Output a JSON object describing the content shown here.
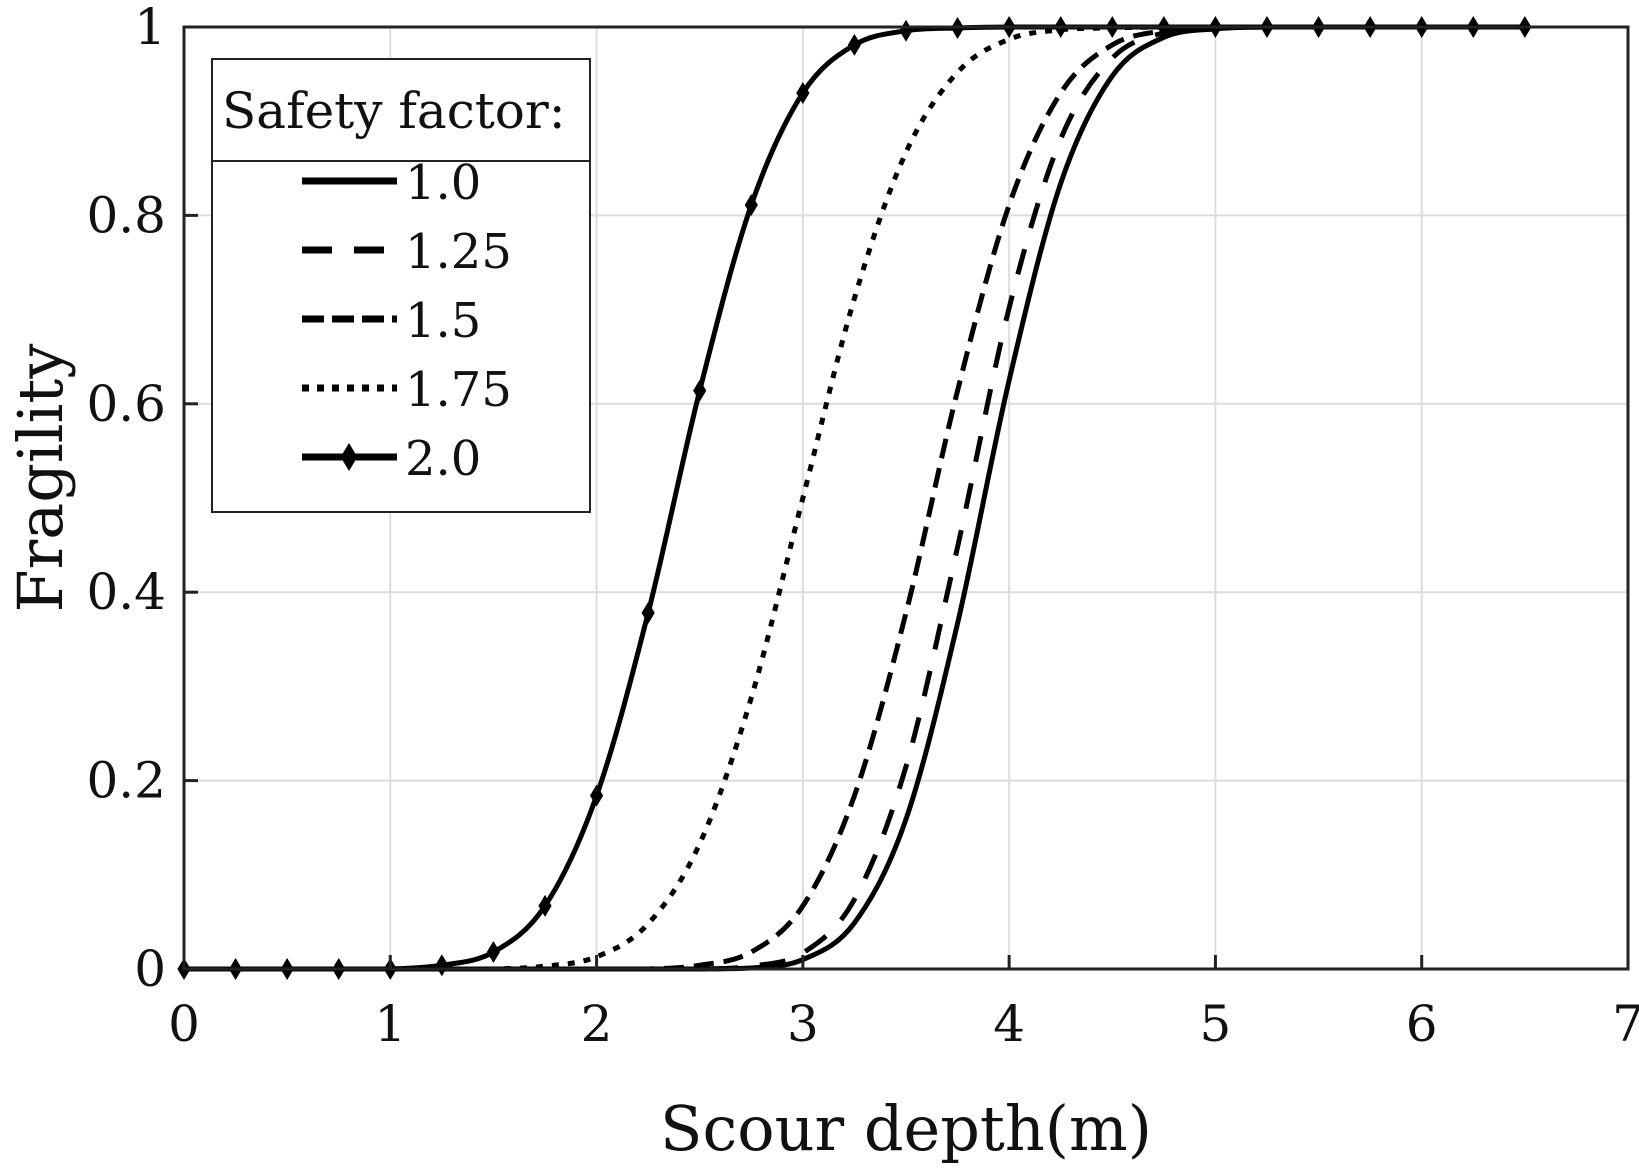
{
  "chart_data": {
    "type": "line",
    "title": "",
    "xlabel": "Scour depth(m)",
    "ylabel": "Fragility",
    "xlim": [
      0,
      7
    ],
    "ylim": [
      0,
      1
    ],
    "xticks": [
      "0",
      "1",
      "2",
      "3",
      "4",
      "5",
      "6",
      "7"
    ],
    "yticks": [
      "0",
      "0.2",
      "0.4",
      "0.6",
      "0.8",
      "1"
    ],
    "grid": true,
    "legend": {
      "title": "Safety factor:",
      "placement": "top-left"
    },
    "x": [
      0,
      0.25,
      0.5,
      0.75,
      1,
      1.25,
      1.5,
      1.75,
      2,
      2.25,
      2.5,
      2.75,
      3,
      3.25,
      3.5,
      3.75,
      4,
      4.25,
      4.5,
      4.75,
      5,
      5.25,
      5.5,
      5.75,
      6,
      6.25,
      6.5
    ],
    "series": [
      {
        "name": "1.0",
        "style": "solid",
        "color": "#000000",
        "values": [
          0,
          0,
          0,
          0,
          0,
          0,
          0,
          0,
          0,
          0,
          0,
          0.001,
          0.01,
          0.049,
          0.159,
          0.367,
          0.625,
          0.834,
          0.948,
          0.989,
          0.998,
          1,
          1,
          1,
          1,
          1,
          1
        ]
      },
      {
        "name": "1.25",
        "style": "long-dash",
        "color": "#000000",
        "values": [
          0,
          0,
          0,
          0,
          0,
          0,
          0,
          0,
          0,
          0,
          0,
          0.003,
          0.017,
          0.074,
          0.215,
          0.448,
          0.702,
          0.881,
          0.967,
          0.994,
          0.999,
          1,
          1,
          1,
          1,
          1,
          1
        ]
      },
      {
        "name": "1.5",
        "style": "dash",
        "color": "#000000",
        "values": [
          0,
          0,
          0,
          0,
          0,
          0,
          0,
          0,
          0,
          0,
          0.004,
          0.018,
          0.067,
          0.184,
          0.378,
          0.614,
          0.811,
          0.93,
          0.981,
          0.996,
          0.999,
          1,
          1,
          1,
          1,
          1,
          1
        ]
      },
      {
        "name": "1.75",
        "style": "dotted",
        "color": "#000000",
        "values": [
          0,
          0,
          0,
          0,
          0,
          0,
          0,
          0.003,
          0.013,
          0.048,
          0.133,
          0.288,
          0.5,
          0.712,
          0.867,
          0.952,
          0.987,
          0.997,
          0.999,
          1,
          1,
          1,
          1,
          1,
          1,
          1,
          1
        ]
      },
      {
        "name": "2.0",
        "style": "solid-diamond",
        "color": "#000000",
        "values": [
          0,
          0,
          0,
          0,
          0,
          0.004,
          0.018,
          0.067,
          0.184,
          0.378,
          0.614,
          0.811,
          0.93,
          0.981,
          0.996,
          0.999,
          1,
          1,
          1,
          1,
          1,
          1,
          1,
          1,
          1,
          1,
          1
        ]
      }
    ]
  }
}
